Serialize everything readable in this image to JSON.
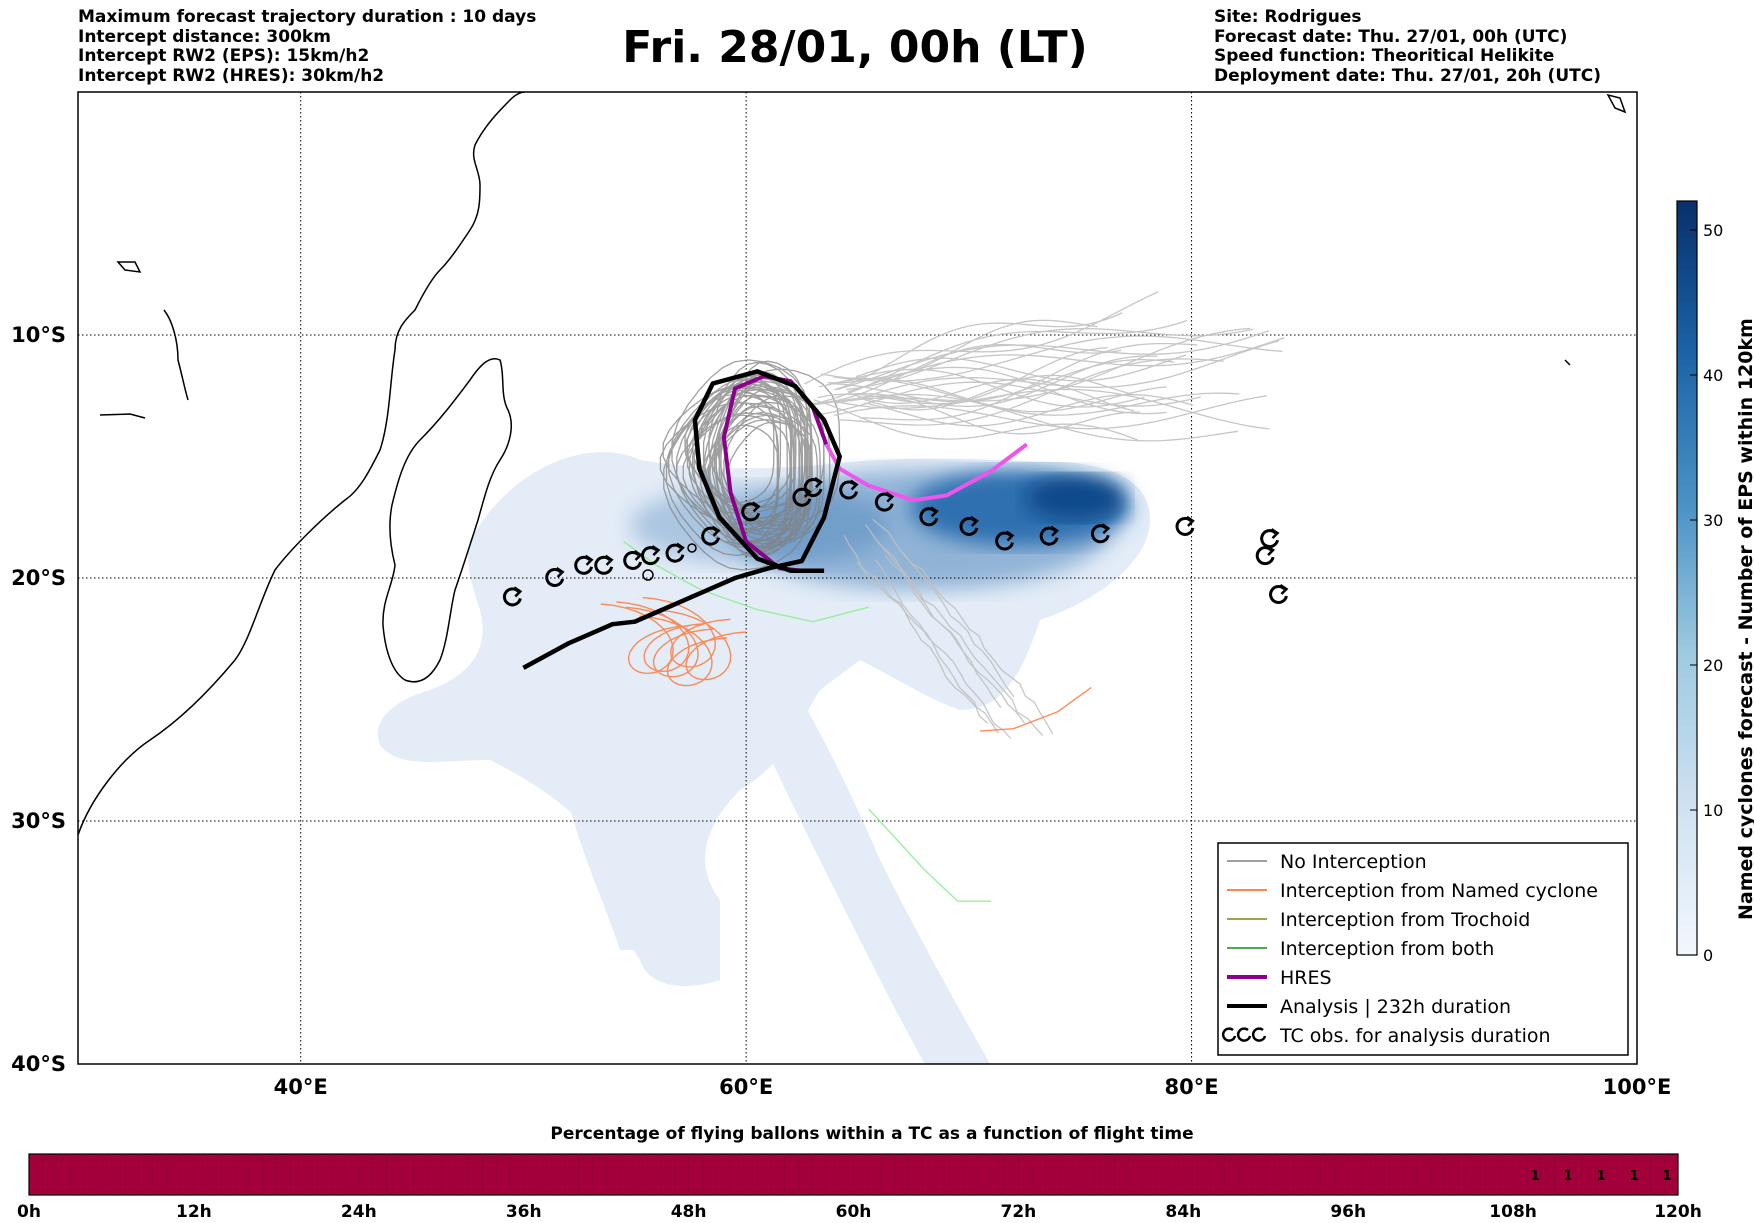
{
  "header": {
    "left_lines": [
      "Maximum forecast trajectory duration : 10 days",
      "Intercept distance: 300km",
      "Intercept RW2 (EPS):  15km/h2",
      "Intercept RW2 (HRES): 30km/h2"
    ],
    "title": "Fri. 28/01, 00h (LT)",
    "right_lines": [
      "Site: Rodrigues",
      "Forecast date: Thu. 27/01, 00h (UTC)",
      "Speed function: Theoritical Helikite",
      "Deployment date: Thu. 27/01, 20h (UTC)"
    ]
  },
  "map": {
    "lon_range": [
      30,
      100
    ],
    "lat_range": [
      -40,
      0
    ],
    "lon_ticks": [
      {
        "value": 40,
        "label": "40°E"
      },
      {
        "value": 60,
        "label": "60°E"
      },
      {
        "value": 80,
        "label": "80°E"
      },
      {
        "value": 100,
        "label": "100°E"
      }
    ],
    "lat_ticks": [
      {
        "value": -10,
        "label": "10°S"
      },
      {
        "value": -20,
        "label": "20°S"
      },
      {
        "value": -30,
        "label": "30°S"
      },
      {
        "value": -40,
        "label": "40°S"
      }
    ],
    "analysis_track": [
      [
        50,
        -23.7
      ],
      [
        52,
        -22.7
      ],
      [
        54,
        -21.9
      ],
      [
        55,
        -21.8
      ],
      [
        56,
        -21.4
      ],
      [
        57.5,
        -20.8
      ],
      [
        59.5,
        -20.0
      ],
      [
        61,
        -19.6
      ],
      [
        62.5,
        -19.3
      ],
      [
        63.5,
        -17.5
      ],
      [
        64.2,
        -15.0
      ],
      [
        63.5,
        -13.5
      ],
      [
        62.2,
        -12.1
      ],
      [
        60.5,
        -11.5
      ],
      [
        58.5,
        -12.0
      ],
      [
        57.7,
        -13.5
      ],
      [
        57.9,
        -15.5
      ],
      [
        58.8,
        -17.5
      ],
      [
        60.5,
        -19.2
      ],
      [
        62,
        -19.7
      ],
      [
        63.5,
        -19.7
      ]
    ],
    "hres_track": [
      [
        62.5,
        -19.7
      ],
      [
        61.5,
        -19.6
      ],
      [
        60,
        -18.5
      ],
      [
        59.3,
        -16.5
      ],
      [
        59.0,
        -14.2
      ],
      [
        59.5,
        -12.2
      ],
      [
        60.8,
        -11.7
      ],
      [
        62.0,
        -11.9
      ],
      [
        63.0,
        -13.0
      ],
      [
        63.6,
        -14.5
      ],
      [
        64.2,
        -15.5
      ],
      [
        65.5,
        -16.2
      ],
      [
        67.5,
        -16.8
      ],
      [
        69,
        -16.6
      ],
      [
        71,
        -15.6
      ],
      [
        72.6,
        -14.5
      ]
    ],
    "tc_obs": [
      [
        49.5,
        -20.8
      ],
      [
        51.4,
        -20.0
      ],
      [
        52.7,
        -19.5
      ],
      [
        53.6,
        -19.5
      ],
      [
        54.9,
        -19.3
      ],
      [
        55.7,
        -19.1
      ],
      [
        56.8,
        -19.0
      ],
      [
        58.4,
        -18.3
      ],
      [
        60.2,
        -17.3
      ],
      [
        62.5,
        -16.7
      ],
      [
        63.0,
        -16.3
      ],
      [
        64.6,
        -16.4
      ],
      [
        66.2,
        -16.9
      ],
      [
        68.2,
        -17.5
      ],
      [
        70.0,
        -17.9
      ],
      [
        71.6,
        -18.5
      ],
      [
        73.6,
        -18.3
      ],
      [
        75.9,
        -18.2
      ],
      [
        79.7,
        -17.9
      ],
      [
        83.3,
        -19.1
      ],
      [
        83.5,
        -18.4
      ],
      [
        83.9,
        -20.7
      ]
    ],
    "heat_colors": [
      "#e3ecf7",
      "#2f6fb0",
      "#0d4a8a"
    ]
  },
  "colorbar": {
    "label": "Named cyclones forecast - Number of EPS within 120km",
    "range": [
      0,
      52
    ],
    "ticks": [
      "0",
      "10",
      "20",
      "30",
      "40",
      "50"
    ],
    "colors": [
      "#f2f7fd",
      "#cfe1f1",
      "#9ecae1",
      "#4a91c4",
      "#1b63a6",
      "#08306b"
    ]
  },
  "legend": {
    "items": [
      {
        "label": "No Interception",
        "color": "#808080",
        "width": 1.5,
        "type": "line"
      },
      {
        "label": "Interception from Named cyclone",
        "color": "#ff5a1a",
        "width": 1.5,
        "type": "line"
      },
      {
        "label": "Interception from Trochoid",
        "color": "#8b8000",
        "width": 1.5,
        "type": "line"
      },
      {
        "label": "Interception from both",
        "color": "#1a8a1a",
        "width": 1.5,
        "type": "line"
      },
      {
        "label": "HRES",
        "color": "#8b008b",
        "width": 4,
        "type": "line"
      },
      {
        "label": "Analysis | 232h duration",
        "color": "#000000",
        "width": 4,
        "type": "line"
      },
      {
        "label": "TC obs. for analysis duration",
        "color": "#000000",
        "width": 0,
        "type": "symbol"
      }
    ]
  },
  "bottom_bar": {
    "title": "Percentage of flying ballons within a TC as a function of flight time",
    "color": "#a3003b",
    "tick_labels": [
      "0h",
      "12h",
      "24h",
      "36h",
      "48h",
      "60h",
      "72h",
      "84h",
      "96h",
      "108h",
      "120h"
    ],
    "cell_values": [
      "1",
      "1",
      "1",
      "1",
      "1"
    ]
  }
}
